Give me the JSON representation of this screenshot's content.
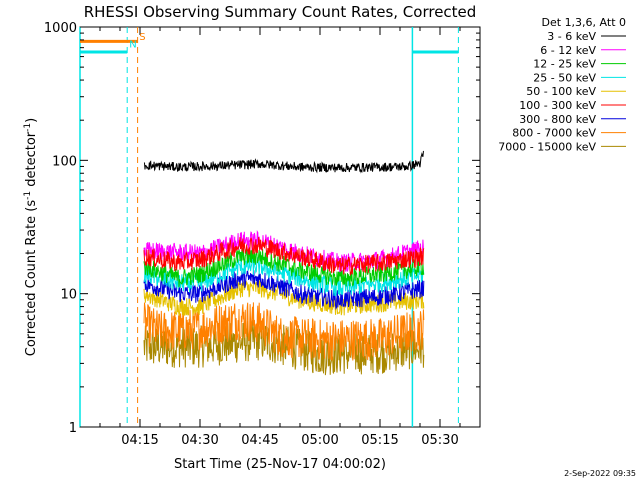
{
  "chart_data": {
    "type": "line",
    "title": "RHESSI Observing Summary Count Rates, Corrected",
    "xlabel": "Start Time (25-Nov-17 04:00:02)",
    "ylabel_main": "Corrected Count Rate (s",
    "ylabel_sup1": "-1",
    "ylabel_mid": " detector",
    "ylabel_sup2": "-1",
    "ylabel_end": ")",
    "y_scale": "log",
    "ylim": [
      1,
      1000
    ],
    "xlim_minutes": [
      0,
      100
    ],
    "yticks": [
      {
        "value": 1,
        "label": "1"
      },
      {
        "value": 10,
        "label": "10"
      },
      {
        "value": 100,
        "label": "100"
      },
      {
        "value": 1000,
        "label": "1000"
      }
    ],
    "xticks": [
      {
        "minute": 15,
        "label": "04:15"
      },
      {
        "minute": 30,
        "label": "04:30"
      },
      {
        "minute": 45,
        "label": "04:45"
      },
      {
        "minute": 60,
        "label": "05:00"
      },
      {
        "minute": 75,
        "label": "05:15"
      },
      {
        "minute": 90,
        "label": "05:30"
      }
    ],
    "legend_placement": "right",
    "legend_header": "Det 1,3,6, Att 0",
    "series": [
      {
        "name": "3 - 6 keV",
        "color": "#000000",
        "samples": [
          [
            16,
            92
          ],
          [
            25,
            89
          ],
          [
            35,
            91
          ],
          [
            45,
            94
          ],
          [
            55,
            89
          ],
          [
            65,
            88
          ],
          [
            75,
            89
          ],
          [
            82,
            90
          ],
          [
            85,
            95
          ],
          [
            86,
            115
          ]
        ]
      },
      {
        "name": "6 - 12 keV",
        "color": "#ff00ff",
        "samples": [
          [
            16,
            21
          ],
          [
            30,
            20
          ],
          [
            40,
            25
          ],
          [
            45,
            25
          ],
          [
            55,
            20
          ],
          [
            65,
            17
          ],
          [
            75,
            18
          ],
          [
            86,
            22
          ]
        ]
      },
      {
        "name": "12 - 25 keV",
        "color": "#00cc00",
        "samples": [
          [
            16,
            16
          ],
          [
            25,
            13
          ],
          [
            30,
            14
          ],
          [
            40,
            19
          ],
          [
            45,
            19
          ],
          [
            55,
            15
          ],
          [
            65,
            13
          ],
          [
            75,
            14
          ],
          [
            86,
            16
          ]
        ]
      },
      {
        "name": "25 - 50 keV",
        "color": "#00e5e5",
        "samples": [
          [
            16,
            14
          ],
          [
            25,
            12
          ],
          [
            30,
            12
          ],
          [
            40,
            16
          ],
          [
            45,
            16
          ],
          [
            55,
            13
          ],
          [
            65,
            11
          ],
          [
            75,
            12
          ],
          [
            86,
            14
          ]
        ]
      },
      {
        "name": "50 - 100 keV",
        "color": "#e5c000",
        "samples": [
          [
            16,
            10
          ],
          [
            25,
            8
          ],
          [
            30,
            8
          ],
          [
            40,
            11
          ],
          [
            45,
            11
          ],
          [
            55,
            9
          ],
          [
            65,
            8
          ],
          [
            75,
            8.5
          ],
          [
            86,
            9
          ]
        ]
      },
      {
        "name": "100 - 300 keV",
        "color": "#ff0000",
        "samples": [
          [
            16,
            19
          ],
          [
            25,
            17
          ],
          [
            30,
            18
          ],
          [
            40,
            23
          ],
          [
            45,
            23
          ],
          [
            55,
            19
          ],
          [
            65,
            16
          ],
          [
            75,
            17
          ],
          [
            86,
            19
          ]
        ]
      },
      {
        "name": "300 - 800 keV",
        "color": "#0000dd",
        "samples": [
          [
            16,
            12
          ],
          [
            25,
            10
          ],
          [
            30,
            10
          ],
          [
            40,
            13
          ],
          [
            45,
            13
          ],
          [
            55,
            10
          ],
          [
            65,
            9
          ],
          [
            75,
            9.5
          ],
          [
            86,
            11
          ]
        ]
      },
      {
        "name": "800 - 7000 keV",
        "color": "#ff8000",
        "samples": [
          [
            16,
            6
          ],
          [
            20,
            5.2
          ],
          [
            30,
            5.5
          ],
          [
            40,
            6.5
          ],
          [
            45,
            6
          ],
          [
            50,
            4.8
          ],
          [
            60,
            4.5
          ],
          [
            75,
            4.6
          ],
          [
            86,
            5.5
          ]
        ]
      },
      {
        "name": "7000 - 15000 keV",
        "color": "#aa8800",
        "samples": [
          [
            16,
            4
          ],
          [
            30,
            4
          ],
          [
            45,
            4.5
          ],
          [
            60,
            3.5
          ],
          [
            75,
            3.6
          ],
          [
            86,
            4
          ]
        ]
      }
    ],
    "annotations": [
      {
        "text": "S",
        "color": "#ff8000",
        "minute": 14.8,
        "value": 800
      },
      {
        "text": "N",
        "color": "#00e5e5",
        "minute": 12.3,
        "value": 700
      }
    ],
    "attenuator_bar": {
      "color": "#ff8000",
      "from_minute": 0,
      "to_minute": 14.4,
      "value": 780
    },
    "night_bars": [
      {
        "from_minute": 0,
        "to_minute": 11.8,
        "value": 650
      },
      {
        "from_minute": 83.1,
        "to_minute": 94.6,
        "value": 650
      }
    ],
    "vlines": [
      {
        "minute": 0,
        "color": "#00e5e5",
        "style": "solid"
      },
      {
        "minute": 11.8,
        "color": "#00e5e5",
        "style": "dashed"
      },
      {
        "minute": 14.4,
        "color": "#ff8000",
        "style": "dashed"
      },
      {
        "minute": 83.1,
        "color": "#00e5e5",
        "style": "solid"
      },
      {
        "minute": 94.6,
        "color": "#00e5e5",
        "style": "dashed"
      }
    ],
    "footer_date": "2-Sep-2022 09:35"
  }
}
